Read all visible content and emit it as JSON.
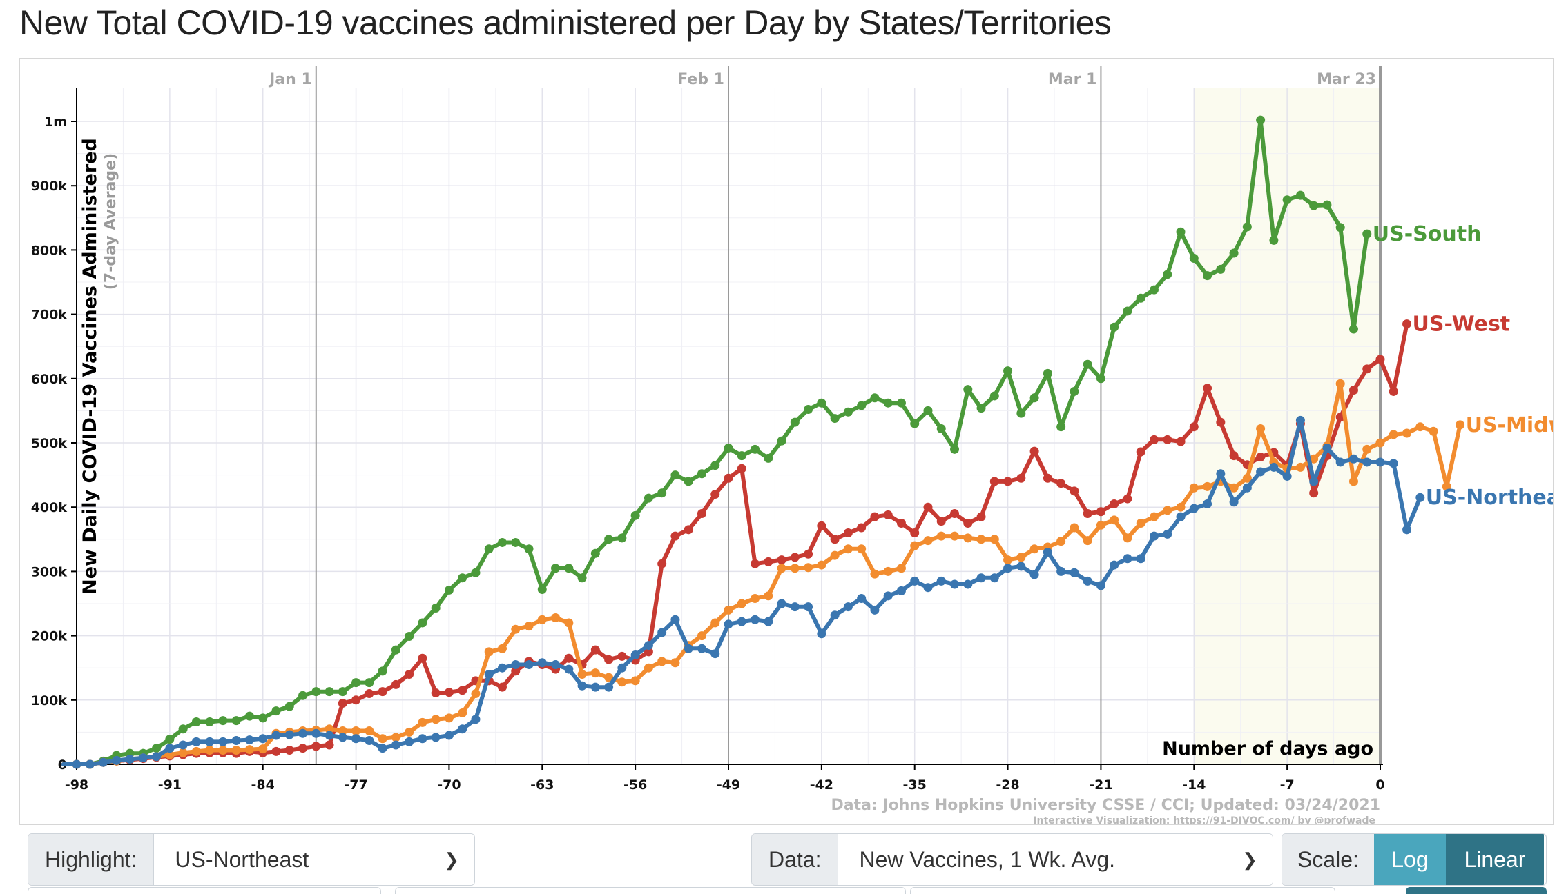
{
  "title": "New Total COVID-19 vaccines administered per Day by States/Territories",
  "controls": {
    "highlight_label": "Highlight:",
    "highlight_value": "US-Northeast",
    "data_label": "Data:",
    "data_value": "New Vaccines, 1 Wk. Avg.",
    "scale_label": "Scale:",
    "scale_log": "Log",
    "scale_linear": "Linear",
    "scale_selected": "Linear"
  },
  "chart_data": {
    "type": "line",
    "ylabel": "New Daily COVID-19 Vaccines Administered",
    "ylabel_sub": "(7-day Average)",
    "xlabel": "Number of days ago",
    "xlim": [
      -98,
      0
    ],
    "ylim": [
      0,
      1050000
    ],
    "x_ticks": [
      -98,
      -91,
      -84,
      -77,
      -70,
      -63,
      -56,
      -49,
      -42,
      -35,
      -28,
      -21,
      -14,
      -7,
      0
    ],
    "y_ticks": [
      0,
      100000,
      200000,
      300000,
      400000,
      500000,
      600000,
      700000,
      800000,
      900000,
      1000000
    ],
    "y_tick_labels": [
      "0",
      "100k",
      "200k",
      "300k",
      "400k",
      "500k",
      "600k",
      "700k",
      "800k",
      "900k",
      "1m"
    ],
    "scale": "linear",
    "grid": true,
    "date_markers": [
      {
        "label": "Jan 1",
        "x": -80
      },
      {
        "label": "Feb 1",
        "x": -49
      },
      {
        "label": "Mar 1",
        "x": -21
      },
      {
        "label": "Mar 23",
        "x": 0
      }
    ],
    "shaded_region": [
      -14,
      0
    ],
    "source": "Data: Johns Hopkins University CSSE / CCI; Updated: 03/24/2021",
    "credit": "Interactive Visualization: https://91-DIVOC.com/ by @profwade_",
    "series": [
      {
        "name": "US-South",
        "color": "#4b9a3a",
        "start_x": -99,
        "values": [
          0,
          0,
          0,
          5000,
          14000,
          17000,
          17000,
          25000,
          39000,
          55000,
          66000,
          66000,
          68000,
          68000,
          75000,
          72000,
          83000,
          90000,
          107000,
          113000,
          113000,
          113000,
          127000,
          127000,
          145000,
          178000,
          199000,
          220000,
          243000,
          271000,
          290000,
          298000,
          335000,
          345000,
          345000,
          335000,
          272000,
          305000,
          305000,
          290000,
          328000,
          350000,
          352000,
          387000,
          414000,
          422000,
          450000,
          440000,
          452000,
          465000,
          492000,
          480000,
          490000,
          476000,
          503000,
          532000,
          552000,
          562000,
          538000,
          548000,
          558000,
          570000,
          562000,
          562000,
          530000,
          550000,
          522000,
          490000,
          583000,
          554000,
          573000,
          612000,
          546000,
          570000,
          608000,
          525000,
          580000,
          622000,
          600000,
          680000,
          705000,
          725000,
          738000,
          762000,
          828000,
          787000,
          760000,
          770000,
          795000,
          836000,
          1002000,
          815000,
          878000,
          885000,
          869000,
          870000,
          835000,
          677000,
          825000
        ]
      },
      {
        "name": "US-West",
        "color": "#c73a32",
        "start_x": -99,
        "values": [
          0,
          0,
          0,
          3000,
          5000,
          7000,
          9000,
          11000,
          13000,
          15000,
          17000,
          18000,
          18000,
          17000,
          20000,
          18000,
          20000,
          22000,
          25000,
          28000,
          30000,
          95000,
          100000,
          110000,
          113000,
          124000,
          140000,
          165000,
          111000,
          112000,
          115000,
          130000,
          130000,
          120000,
          145000,
          160000,
          155000,
          148000,
          165000,
          155000,
          178000,
          163000,
          168000,
          162000,
          175000,
          312000,
          355000,
          365000,
          390000,
          420000,
          445000,
          460000,
          312000,
          315000,
          318000,
          322000,
          327000,
          371000,
          350000,
          360000,
          368000,
          385000,
          388000,
          375000,
          360000,
          400000,
          378000,
          390000,
          375000,
          385000,
          440000,
          440000,
          445000,
          487000,
          445000,
          437000,
          425000,
          390000,
          393000,
          405000,
          413000,
          486000,
          505000,
          505000,
          502000,
          525000,
          585000,
          532000,
          480000,
          466000,
          478000,
          485000,
          465000,
          530000,
          422000,
          480000,
          540000,
          582000,
          615000,
          630000,
          580000,
          685000
        ]
      },
      {
        "name": "US-Midwest",
        "color": "#f28c2f",
        "start_x": -99,
        "values": [
          0,
          0,
          0,
          3000,
          5000,
          8000,
          10000,
          12000,
          15000,
          18000,
          20000,
          22000,
          22000,
          22000,
          23000,
          24000,
          48000,
          50000,
          52000,
          53000,
          55000,
          52000,
          52000,
          52000,
          40000,
          42000,
          50000,
          65000,
          70000,
          72000,
          80000,
          110000,
          175000,
          180000,
          210000,
          215000,
          225000,
          228000,
          220000,
          140000,
          142000,
          135000,
          128000,
          130000,
          150000,
          160000,
          158000,
          185000,
          200000,
          220000,
          240000,
          250000,
          258000,
          262000,
          305000,
          305000,
          306000,
          310000,
          325000,
          335000,
          335000,
          296000,
          300000,
          305000,
          340000,
          348000,
          355000,
          355000,
          352000,
          350000,
          350000,
          318000,
          322000,
          335000,
          338000,
          347000,
          368000,
          348000,
          372000,
          380000,
          352000,
          375000,
          385000,
          395000,
          400000,
          430000,
          432000,
          440000,
          430000,
          445000,
          522000,
          470000,
          460000,
          462000,
          475000,
          495000,
          592000,
          440000,
          490000,
          500000,
          513000,
          515000,
          525000,
          518000,
          432000,
          528000
        ]
      },
      {
        "name": "US-Northeast",
        "color": "#3a76b0",
        "start_x": -99,
        "values": [
          0,
          0,
          0,
          3000,
          6000,
          8000,
          10000,
          12000,
          25000,
          30000,
          35000,
          35000,
          35000,
          37000,
          38000,
          40000,
          45000,
          46000,
          48000,
          48000,
          45000,
          42000,
          40000,
          37000,
          25000,
          30000,
          35000,
          40000,
          42000,
          45000,
          55000,
          70000,
          140000,
          150000,
          155000,
          155000,
          158000,
          155000,
          148000,
          122000,
          120000,
          120000,
          150000,
          170000,
          185000,
          205000,
          225000,
          180000,
          180000,
          172000,
          218000,
          222000,
          225000,
          222000,
          250000,
          245000,
          245000,
          203000,
          232000,
          245000,
          258000,
          240000,
          262000,
          270000,
          285000,
          275000,
          285000,
          280000,
          280000,
          290000,
          290000,
          305000,
          308000,
          295000,
          330000,
          300000,
          298000,
          285000,
          278000,
          310000,
          320000,
          320000,
          355000,
          358000,
          385000,
          398000,
          405000,
          452000,
          408000,
          430000,
          455000,
          462000,
          448000,
          535000,
          440000,
          492000,
          470000,
          475000,
          470000,
          470000,
          468000,
          365000,
          415000
        ]
      }
    ]
  }
}
